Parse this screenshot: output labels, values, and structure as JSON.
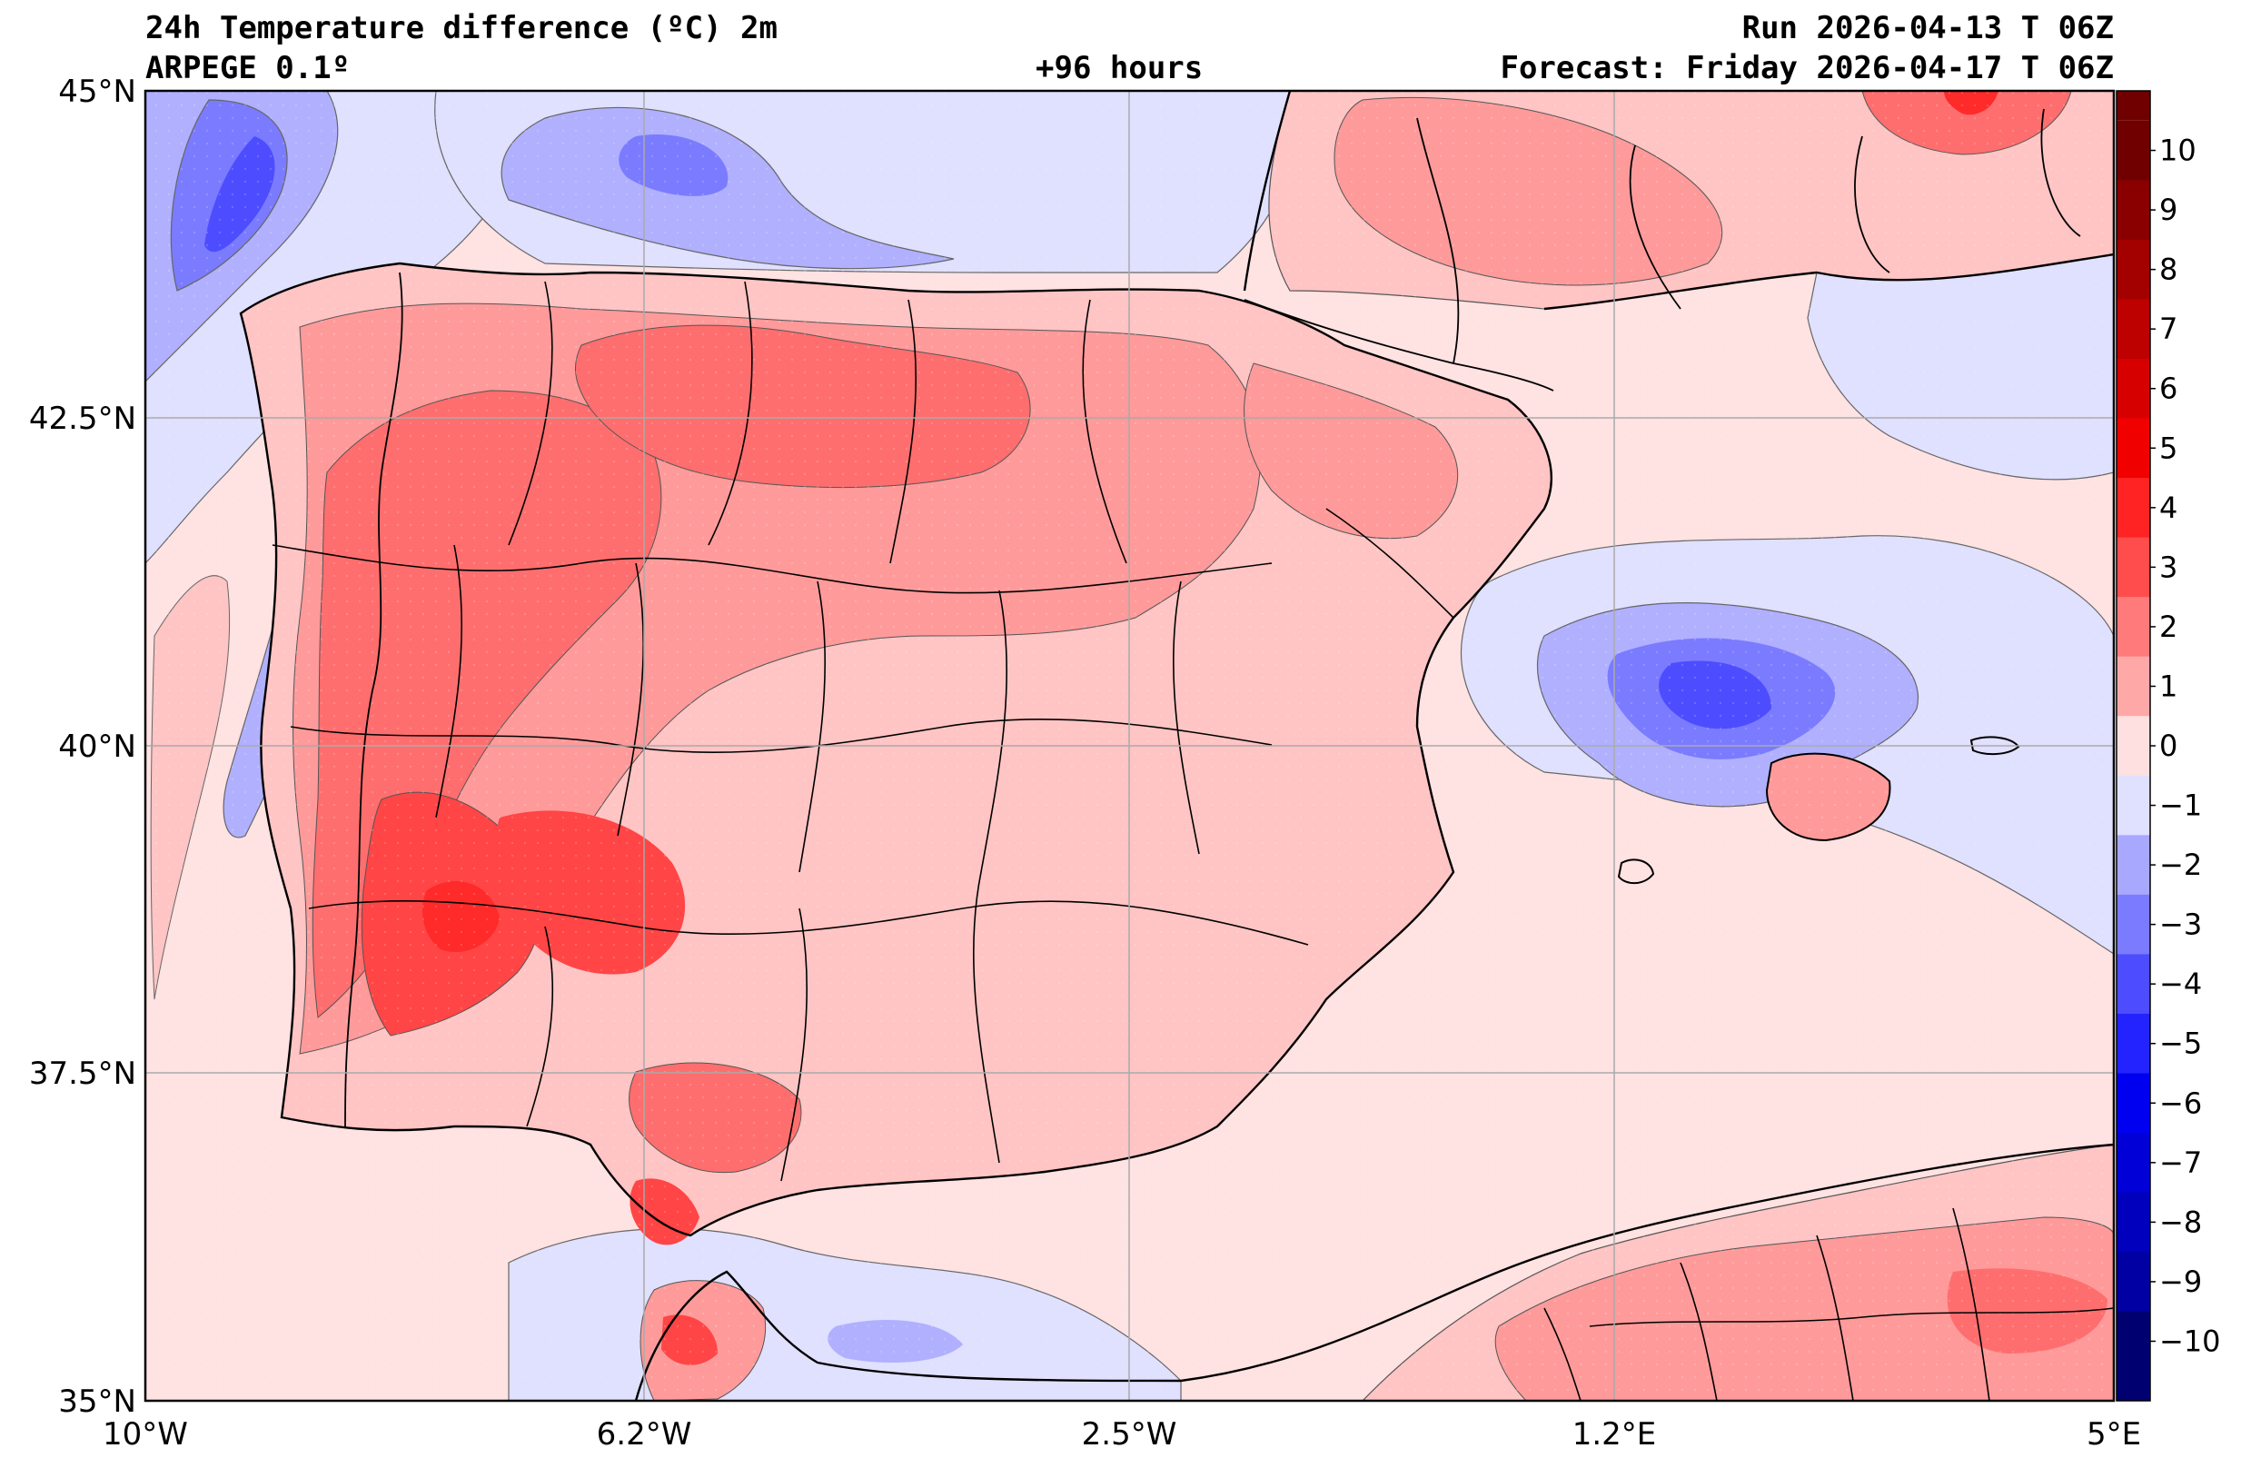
{
  "header": {
    "title": "24h Temperature difference (ºC) 2m",
    "model": "ARPEGE 0.1º",
    "lead": "+96 hours",
    "run": "Run 2026-04-13 T 06Z",
    "forecast": "Forecast: Friday 2026-04-17 T 06Z"
  },
  "axes": {
    "y_labels": [
      "45°N",
      "42.5°N",
      "40°N",
      "37.5°N",
      "35°N"
    ],
    "x_labels": [
      "10°W",
      "6.2°W",
      "2.5°W",
      "1.2°E",
      "5°E"
    ],
    "lat_range": [
      35,
      45
    ],
    "lon_range": [
      -10,
      5
    ],
    "grid": true
  },
  "colorbar": {
    "labels": [
      "10",
      "9",
      "8",
      "7",
      "6",
      "5",
      "4",
      "3",
      "2",
      "1",
      "0",
      "−1",
      "−2",
      "−3",
      "−4",
      "−5",
      "−6",
      "−7",
      "−8",
      "−9",
      "−10"
    ],
    "colors": [
      "#700000",
      "#8a0000",
      "#a30000",
      "#bd0000",
      "#d70000",
      "#f10000",
      "#ff2323",
      "#ff4d4d",
      "#ff7b7b",
      "#ffa8a8",
      "#ffe0e0",
      "#e0e0ff",
      "#a8a8ff",
      "#7b7bff",
      "#4d4dff",
      "#2323ff",
      "#0000f1",
      "#0000d7",
      "#0000bd",
      "#0000a3",
      "#000070"
    ]
  },
  "colors": {
    "ocean": "#ffe2e2",
    "cool_1": "#e0e0ff",
    "cool_2": "#b0b0ff",
    "cool_3": "#7b7bff",
    "cool_4": "#4d4dff",
    "warm_1": "#ffc4c4",
    "warm_2": "#ff9a9a",
    "warm_3": "#ff6e6e",
    "warm_4": "#ff4545",
    "warm_5": "#ff2a2a"
  }
}
